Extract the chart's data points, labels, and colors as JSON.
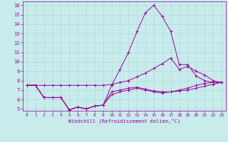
{
  "xlabel": "Windchill (Refroidissement éolien,°C)",
  "background_color": "#c8ecec",
  "grid_color": "#b0d8d8",
  "line_color": "#990099",
  "xlim": [
    -0.5,
    23.5
  ],
  "ylim": [
    4.8,
    16.4
  ],
  "yticks": [
    5,
    6,
    7,
    8,
    9,
    10,
    11,
    12,
    13,
    14,
    15,
    16
  ],
  "xticks": [
    0,
    1,
    2,
    3,
    4,
    5,
    6,
    7,
    8,
    9,
    10,
    11,
    12,
    13,
    14,
    15,
    16,
    17,
    18,
    19,
    20,
    21,
    22,
    23
  ],
  "series": [
    [
      7.5,
      7.5,
      7.5,
      7.5,
      7.5,
      7.5,
      7.5,
      7.5,
      7.5,
      7.5,
      7.6,
      7.8,
      8.0,
      8.4,
      8.8,
      9.3,
      9.8,
      10.4,
      9.2,
      9.5,
      9.0,
      8.6,
      8.0,
      7.8
    ],
    [
      7.5,
      7.5,
      6.2,
      6.2,
      6.2,
      4.9,
      5.2,
      5.0,
      5.3,
      5.4,
      6.5,
      6.8,
      7.0,
      7.2,
      7.0,
      6.8,
      6.7,
      6.8,
      6.9,
      7.0,
      7.2,
      7.4,
      7.6,
      7.8
    ],
    [
      7.5,
      7.5,
      6.2,
      6.2,
      6.2,
      4.9,
      5.2,
      5.0,
      5.3,
      5.4,
      7.5,
      9.2,
      11.0,
      13.2,
      15.2,
      16.0,
      14.8,
      13.2,
      9.7,
      9.7,
      8.5,
      8.0,
      7.8,
      7.8
    ],
    [
      7.5,
      7.5,
      6.2,
      6.2,
      6.2,
      4.9,
      5.2,
      5.0,
      5.3,
      5.4,
      6.8,
      7.0,
      7.2,
      7.3,
      7.1,
      6.9,
      6.8,
      6.8,
      7.0,
      7.2,
      7.5,
      7.7,
      7.8,
      7.8
    ]
  ]
}
